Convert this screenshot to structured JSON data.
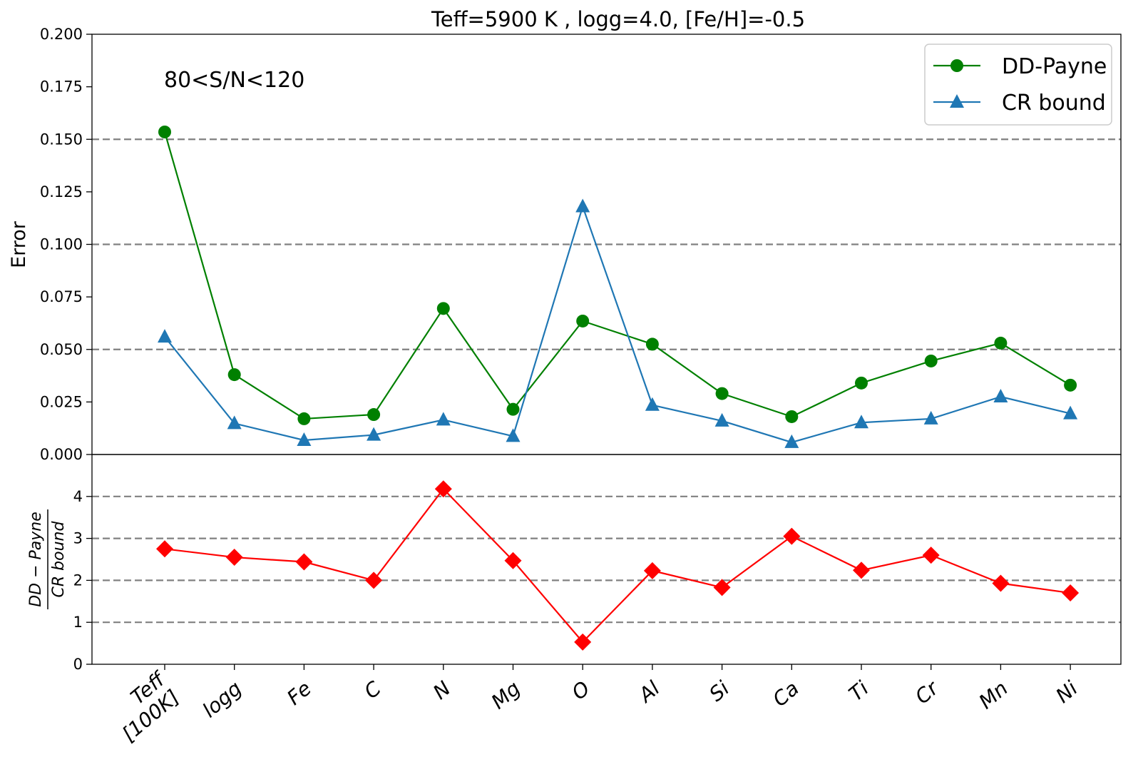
{
  "chart_data": [
    {
      "type": "line",
      "title": "Teff=5900 K , logg=4.0, [Fe/H]=-0.5",
      "ylabel": "Error",
      "ylim": [
        0,
        0.2
      ],
      "yticks": [
        "0.000",
        "0.025",
        "0.050",
        "0.075",
        "0.100",
        "0.125",
        "0.150",
        "0.175",
        "0.200"
      ],
      "grid_y": [
        0.05,
        0.1,
        0.15
      ],
      "annotation": "80<S/N<120",
      "legend_position": "upper right",
      "categories": [
        "Teff\n[100K]",
        "logg",
        "Fe",
        "C",
        "N",
        "Mg",
        "O",
        "Al",
        "Si",
        "Ca",
        "Ti",
        "Cr",
        "Mn",
        "Ni"
      ],
      "series": [
        {
          "name": "DD-Payne",
          "color": "#008000",
          "marker": "circle",
          "values": [
            0.1535,
            0.038,
            0.017,
            0.019,
            0.0695,
            0.0215,
            0.0635,
            0.0525,
            0.029,
            0.018,
            0.034,
            0.0445,
            0.053,
            0.033
          ]
        },
        {
          "name": "CR bound",
          "color": "#1f77b4",
          "marker": "triangle",
          "values": [
            0.056,
            0.0148,
            0.0068,
            0.0093,
            0.0165,
            0.0087,
            0.118,
            0.0235,
            0.016,
            0.0058,
            0.0152,
            0.017,
            0.0275,
            0.0195
          ]
        }
      ]
    },
    {
      "type": "line",
      "ylabel": "DD − Payne / CR bound",
      "ylabel_num": "DD − Payne",
      "ylabel_den": "CR bound",
      "ylim": [
        0,
        5
      ],
      "yticks": [
        "0",
        "1",
        "2",
        "3",
        "4"
      ],
      "grid_y": [
        1,
        2,
        3,
        4
      ],
      "categories": [
        "Teff\n[100K]",
        "logg",
        "Fe",
        "C",
        "N",
        "Mg",
        "O",
        "Al",
        "Si",
        "Ca",
        "Ti",
        "Cr",
        "Mn",
        "Ni"
      ],
      "series": [
        {
          "color": "#ff0000",
          "marker": "diamond",
          "values": [
            2.75,
            2.55,
            2.44,
            2.0,
            4.18,
            2.47,
            0.53,
            2.23,
            1.83,
            3.05,
            2.24,
            2.6,
            1.93,
            1.7
          ]
        }
      ]
    }
  ]
}
